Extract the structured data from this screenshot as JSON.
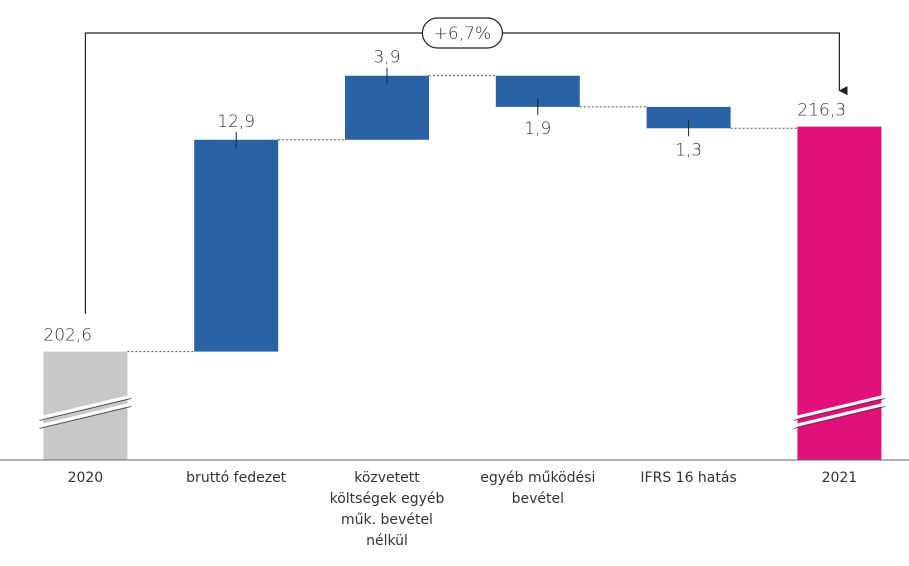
{
  "chart_data": {
    "type": "waterfall",
    "categories": [
      "2020",
      "bruttó fedezet",
      "közvetett költségek egyéb műk. bevétel nélkül",
      "egyéb működési bevétel",
      "IFRS 16 hatás",
      "2021"
    ],
    "values": [
      202.6,
      12.9,
      3.9,
      -1.9,
      -1.3,
      216.3
    ],
    "value_labels": [
      "202,6",
      "12,9",
      "3,9",
      "1,9",
      "1,3",
      "216,3"
    ],
    "measure": [
      "absolute",
      "relative",
      "relative",
      "relative",
      "relative",
      "absolute"
    ],
    "colors": [
      "#c8c8ca",
      "#2a62a6",
      "#2a62a6",
      "#2a62a6",
      "#2a62a6",
      "#e2107a"
    ],
    "ylim": [
      196,
      223
    ],
    "annotation": "+6,7%"
  }
}
